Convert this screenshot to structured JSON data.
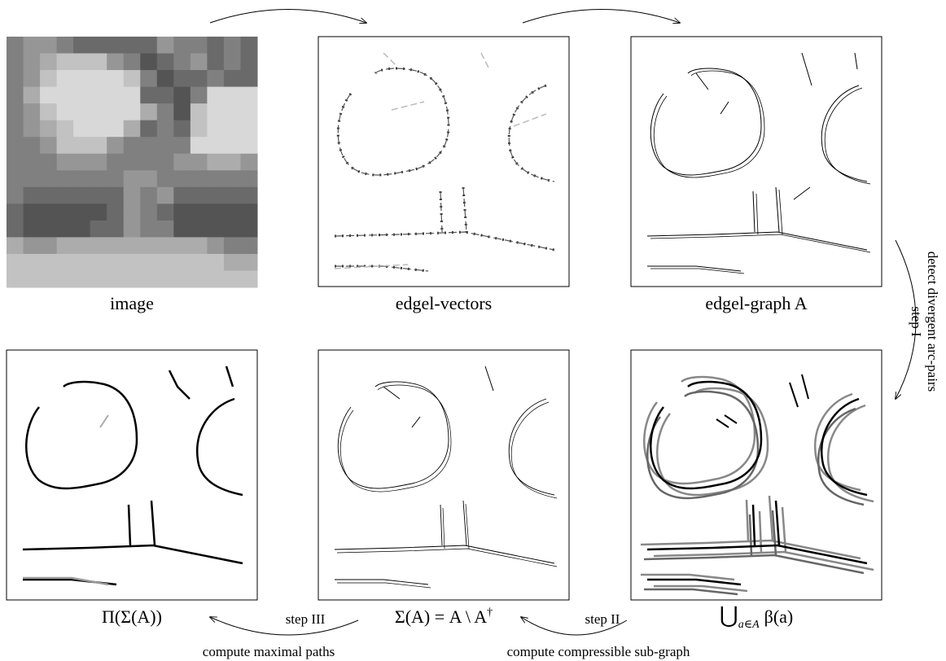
{
  "panels": {
    "image": {
      "caption": "image"
    },
    "edgel_vectors": {
      "caption": "edgel-vectors"
    },
    "edgel_graph": {
      "caption": "edgel-graph A"
    },
    "maximal_paths": {
      "caption": "Π(Σ(A))"
    },
    "compressible": {
      "caption": {
        "main": "Σ(A) = A \\ A",
        "superscript": "†"
      }
    },
    "union": {
      "caption": {
        "symbol": "⋃",
        "subscript": "a∈A",
        "body": "β(a)"
      }
    }
  },
  "steps": {
    "step1": {
      "label": "step I",
      "description": "detect divergent arc-pairs"
    },
    "step2": {
      "label": "step II",
      "description": "compute compressible sub-graph"
    },
    "step3": {
      "label": "step III",
      "description": "compute maximal paths"
    }
  }
}
